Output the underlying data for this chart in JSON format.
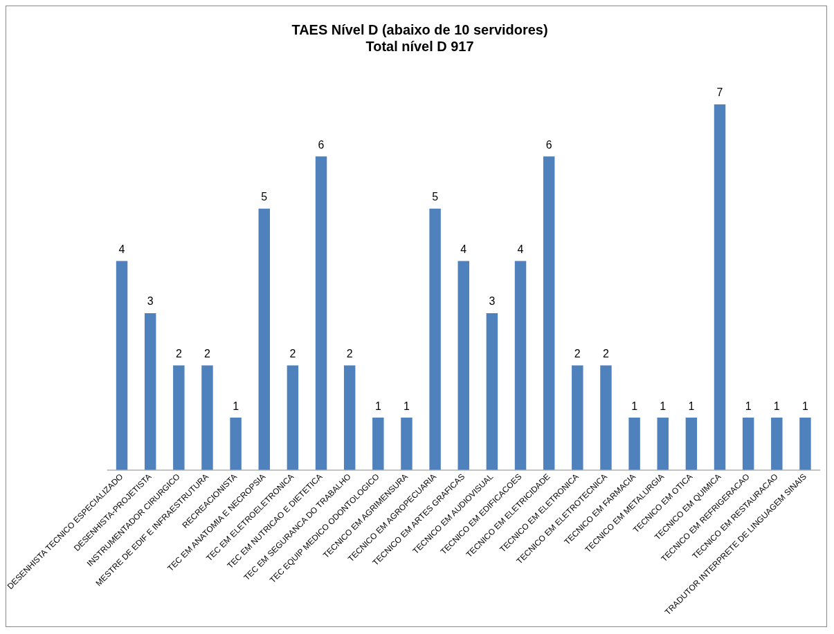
{
  "chart_data": {
    "type": "bar",
    "title": "TAES Nível D (abaixo de 10 servidores)",
    "subtitle": "Total nível D 917",
    "categories": [
      "DESENHISTA TECNICO ESPECIALIZADO",
      "DESENHISTA-PROJETISTA",
      "INSTRUMENTADOR CIRURGICO",
      "MESTRE DE EDIF E INFRAESTRUTURA",
      "RECREACIONISTA",
      "TEC EM ANATOMIA E NECROPSIA",
      "TEC EM ELETROELETRONICA",
      "TEC EM NUTRICAO E DIETETICA",
      "TEC EM SEGURANCA DO TRABALHO",
      "TEC EQUIP MEDICO ODONTOLOGICO",
      "TECNICO EM AGRIMENSURA",
      "TECNICO EM AGROPECUARIA",
      "TECNICO EM ARTES GRAFICAS",
      "TECNICO EM AUDIOVISUAL",
      "TECNICO EM EDIFICACOES",
      "TECNICO EM ELETRICIDADE",
      "TECNICO EM ELETRONICA",
      "TECNICO EM ELETROTECNICA",
      "TECNICO EM FARMACIA",
      "TECNICO EM METALURGIA",
      "TECNICO EM OTICA",
      "TECNICO EM QUIMICA",
      "TECNICO EM REFRIGERACAO",
      "TECNICO EM RESTAURACAO",
      "TRADUTOR INTERPRETE DE LINGUAGEM SINAIS"
    ],
    "values": [
      4,
      3,
      2,
      2,
      1,
      5,
      2,
      6,
      2,
      1,
      1,
      5,
      4,
      3,
      4,
      6,
      2,
      2,
      1,
      1,
      1,
      7,
      1,
      1,
      1
    ],
    "color": "#4f81bd",
    "data_labels": true,
    "grid": false,
    "legend": false
  }
}
